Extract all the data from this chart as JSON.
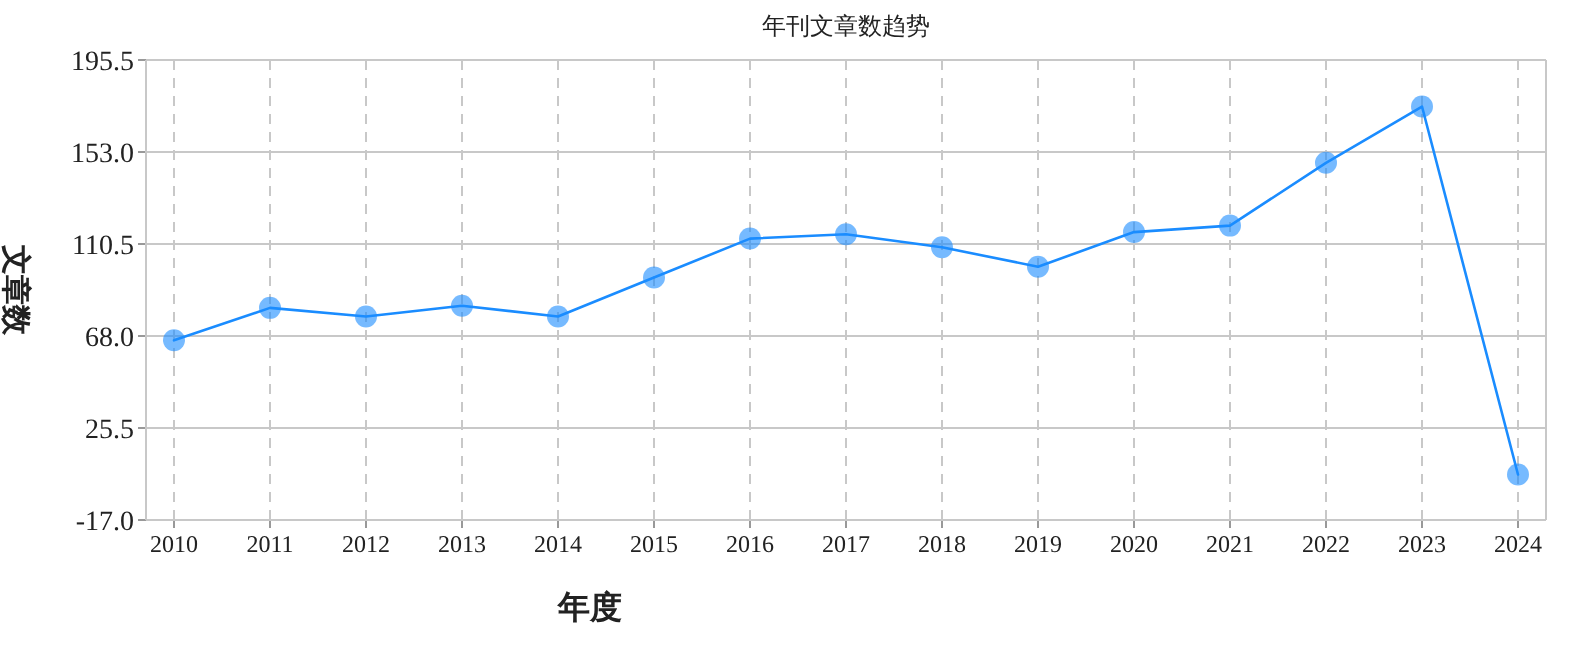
{
  "chart_data": {
    "type": "line",
    "title": "年刊文章数趋势",
    "xlabel": "年度",
    "ylabel": "文章数",
    "categories": [
      "2010",
      "2011",
      "2012",
      "2013",
      "2014",
      "2015",
      "2016",
      "2017",
      "2018",
      "2019",
      "2020",
      "2021",
      "2022",
      "2023",
      "2024"
    ],
    "series": [
      {
        "color": "#1a8cff",
        "values": [
          66,
          81,
          77,
          82,
          77,
          95,
          113,
          115,
          109,
          100,
          116,
          119,
          148,
          174,
          4
        ]
      }
    ],
    "ylim": [
      -17,
      195.5
    ],
    "yticks": [
      {
        "value": -17,
        "label": "-17.0"
      },
      {
        "value": 25.5,
        "label": "25.5"
      },
      {
        "value": 68,
        "label": "68.0"
      },
      {
        "value": 110.5,
        "label": "110.5"
      },
      {
        "value": 153,
        "label": "153.0"
      },
      {
        "value": 195.5,
        "label": "195.5"
      }
    ],
    "grid": true,
    "marker": "circle",
    "line_style": "solid"
  }
}
